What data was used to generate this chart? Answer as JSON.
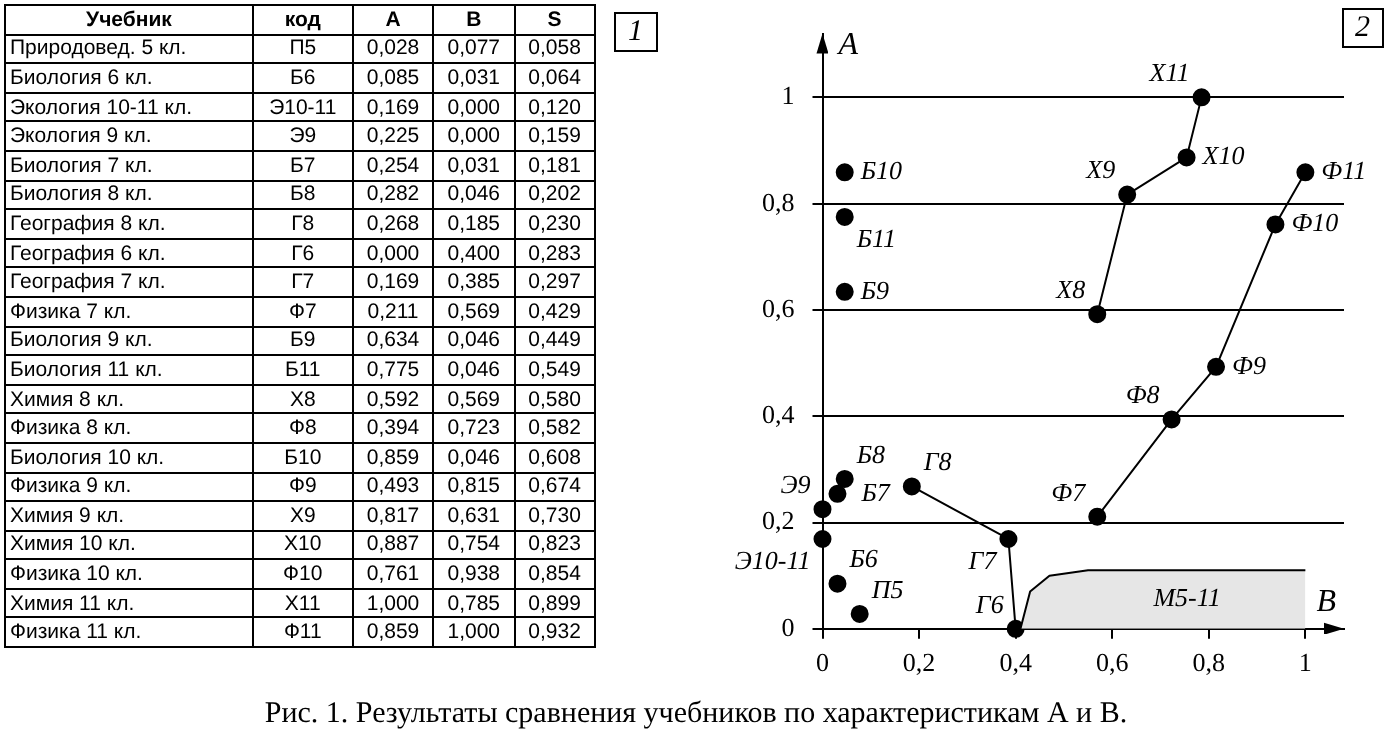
{
  "chart_data": [
    {
      "type": "other",
      "title": "1",
      "annotations": [
        "Учебник",
        "код",
        "A",
        "B",
        "S",
        "Природовед. 5 кл.",
        "П5",
        "0,028",
        "0,077",
        "0,058",
        "Биология 6 кл.",
        "Б6",
        "0,085",
        "0,031",
        "0,064",
        "Экология 10-11 кл.",
        "Э10-11",
        "0,169",
        "0,000",
        "0,120",
        "Экология 9 кл.",
        "Э9",
        "0,225",
        "0,000",
        "0,159",
        "Биология 7 кл.",
        "Б7",
        "0,254",
        "0,031",
        "0,181",
        "Биология 8 кл.",
        "Б8",
        "0,282",
        "0,046",
        "0,202",
        "География 8 кл.",
        "Г8",
        "0,268",
        "0,185",
        "0,230",
        "География 6 кл.",
        "Г6",
        "0,000",
        "0,400",
        "0,283",
        "География 7 кл.",
        "Г7",
        "0,169",
        "0,385",
        "0,297",
        "Физика 7 кл.",
        "Ф7",
        "0,211",
        "0,569",
        "0,429",
        "Биология 9 кл.",
        "Б9",
        "0,634",
        "0,046",
        "0,449",
        "Биология 11 кл.",
        "Б11",
        "0,775",
        "0,046",
        "0,549",
        "Химия 8 кл.",
        "Х8",
        "0,592",
        "0,569",
        "0,580",
        "Физика 8 кл.",
        "Ф8",
        "0,394",
        "0,723",
        "0,582",
        "Биология 10 кл.",
        "Б10",
        "0,859",
        "0,046",
        "0,608",
        "Физика 9 кл.",
        "Ф9",
        "0,493",
        "0,815",
        "0,674",
        "Химия 9 кл.",
        "Х9",
        "0,817",
        "0,631",
        "0,730",
        "Химия 10 кл.",
        "Х10",
        "0,887",
        "0,754",
        "0,823",
        "Физика 10 кл.",
        "Ф10",
        "0,761",
        "0,938",
        "0,854",
        "Химия 11 кл.",
        "Х11",
        "1,000",
        "0,785",
        "0,899",
        "Физика 11 кл.",
        "Ф11",
        "0,859",
        "1,000",
        "0,932"
      ]
    },
    {
      "type": "scatter",
      "title": "2",
      "xlabel": "B",
      "ylabel": "A",
      "marker": "circle",
      "line_style": "solid",
      "grid": "y",
      "xlim": [
        0,
        1.08
      ],
      "ylim": [
        0,
        1.12
      ],
      "xticks": [
        0,
        {
          "value": 0.2,
          "label": "0,2"
        },
        {
          "value": 0.4,
          "label": "0,4"
        },
        {
          "value": 0.6,
          "label": "0,6"
        },
        {
          "value": 0.8,
          "label": "0,8"
        },
        1
      ],
      "yticks": [
        0,
        {
          "value": 0.2,
          "label": "0,2"
        },
        {
          "value": 0.4,
          "label": "0,4"
        },
        {
          "value": 0.6,
          "label": "0,6"
        },
        {
          "value": 0.8,
          "label": "0,8"
        },
        1
      ],
      "series": [
        {
          "type": "area",
          "name": "М5-11",
          "color": "#e6e6e6",
          "marker": "none",
          "x": [
            0.41,
            0.43,
            0.47,
            0.55,
            1.0
          ],
          "values": [
            0,
            0.07,
            0.1,
            0.11,
            0.11
          ]
        },
        {
          "type": "scatter",
          "color": "#000000",
          "x": [
            0.077,
            0.031,
            0.0,
            0.0,
            0.031,
            0.046,
            0.046,
            0.046,
            0.046
          ],
          "values": [
            0.028,
            0.085,
            0.169,
            0.225,
            0.254,
            0.282,
            0.634,
            0.775,
            0.859
          ]
        },
        {
          "type": "line",
          "color": "#000000",
          "x": [
            0.569,
            0.631,
            0.754,
            0.785
          ],
          "values": [
            0.592,
            0.817,
            0.887,
            1.0
          ]
        },
        {
          "type": "line",
          "color": "#000000",
          "x": [
            0.569,
            0.723,
            0.815,
            0.938,
            1.0
          ],
          "values": [
            0.211,
            0.394,
            0.493,
            0.761,
            0.859
          ]
        },
        {
          "type": "line",
          "color": "#000000",
          "x": [
            0.185,
            0.385,
            0.4
          ],
          "values": [
            0.268,
            0.169,
            0.0
          ]
        }
      ],
      "annotations": [
        {
          "text": "П5",
          "x": 0.077,
          "y": 0.028
        },
        {
          "text": "Б6",
          "x": 0.031,
          "y": 0.085
        },
        {
          "text": "Э10-11",
          "x": 0.0,
          "y": 0.169
        },
        {
          "text": "Э9",
          "x": 0.0,
          "y": 0.225
        },
        {
          "text": "Б7",
          "x": 0.031,
          "y": 0.254
        },
        {
          "text": "Б8",
          "x": 0.046,
          "y": 0.282
        },
        {
          "text": "Б9",
          "x": 0.046,
          "y": 0.634
        },
        {
          "text": "Б11",
          "x": 0.046,
          "y": 0.775
        },
        {
          "text": "Б10",
          "x": 0.046,
          "y": 0.859
        },
        {
          "text": "Х8",
          "x": 0.569,
          "y": 0.592
        },
        {
          "text": "Х9",
          "x": 0.631,
          "y": 0.817
        },
        {
          "text": "Х10",
          "x": 0.754,
          "y": 0.887
        },
        {
          "text": "Х11",
          "x": 0.785,
          "y": 1.0
        },
        {
          "text": "Ф7",
          "x": 0.569,
          "y": 0.211
        },
        {
          "text": "Ф8",
          "x": 0.723,
          "y": 0.394
        },
        {
          "text": "Ф9",
          "x": 0.815,
          "y": 0.493
        },
        {
          "text": "Ф10",
          "x": 0.938,
          "y": 0.761
        },
        {
          "text": "Ф11",
          "x": 1.0,
          "y": 0.859
        },
        {
          "text": "Г8",
          "x": 0.185,
          "y": 0.268
        },
        {
          "text": "Г7",
          "x": 0.385,
          "y": 0.169
        },
        {
          "text": "Г6",
          "x": 0.4,
          "y": 0.0
        },
        "Рис. 1. Результаты сравнения учебников по характеристикам А и В."
      ]
    }
  ]
}
